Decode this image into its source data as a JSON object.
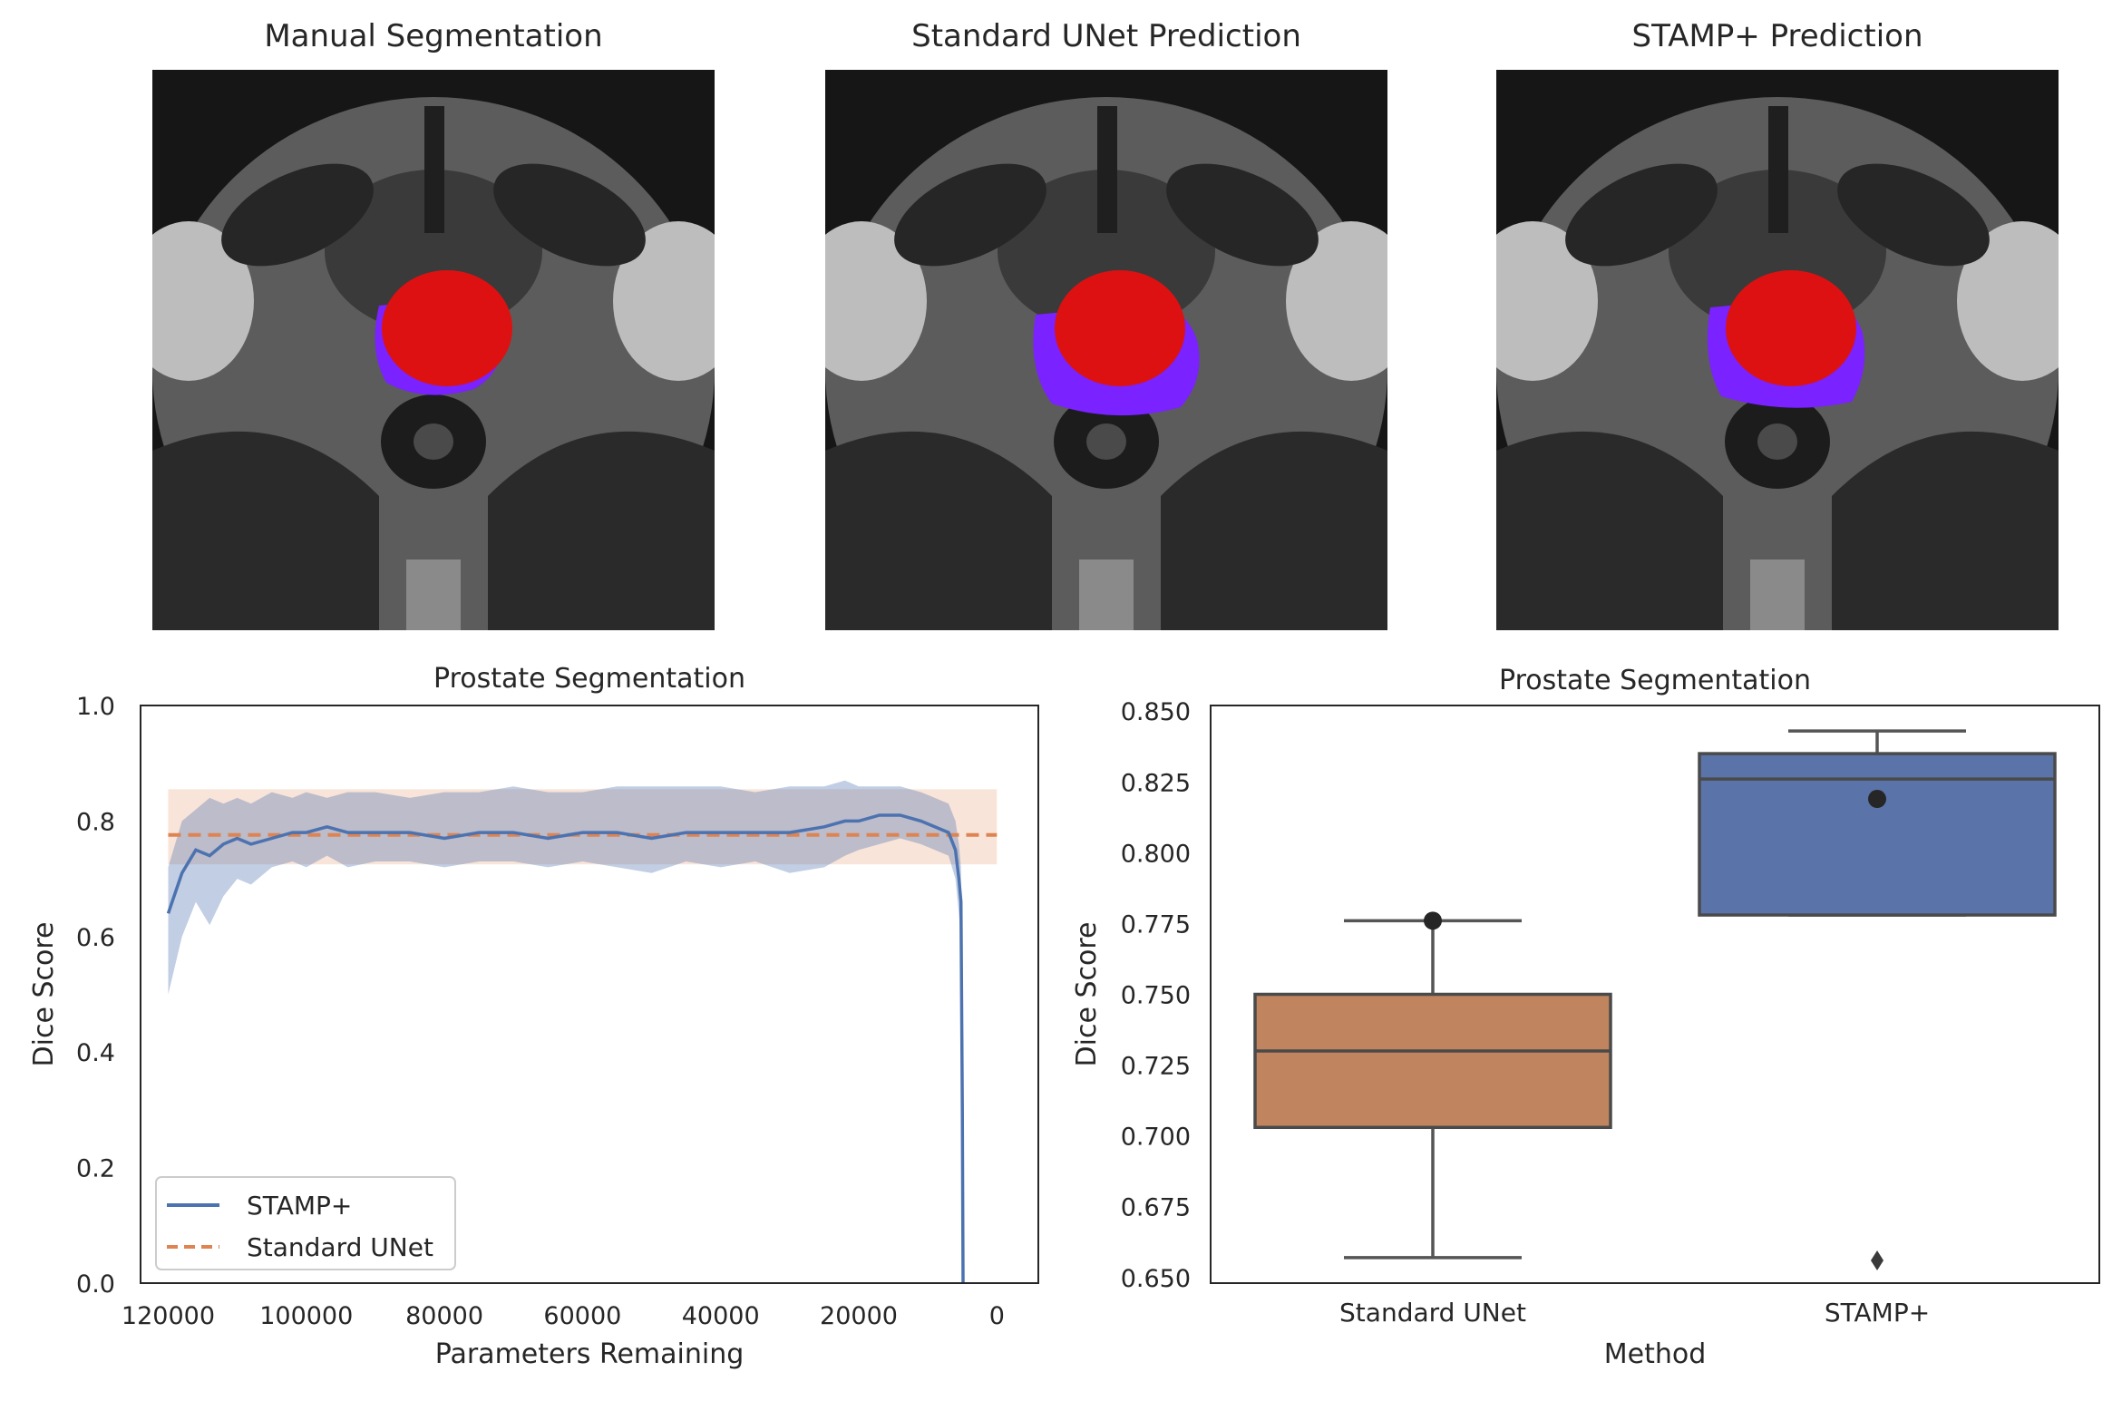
{
  "images": {
    "panels": [
      {
        "title": "Manual Segmentation"
      },
      {
        "title": "Standard UNet Prediction"
      },
      {
        "title": "STAMP+ Prediction"
      }
    ],
    "colors": {
      "prostate": "#dd1111",
      "extra": "#7a22ff"
    }
  },
  "chart_data": [
    {
      "type": "line",
      "title": "Prostate Segmentation",
      "xlabel": "Parameters Remaining",
      "ylabel": "Dice Score",
      "xlim": [
        124000,
        -6000
      ],
      "ylim": [
        0.0,
        1.0
      ],
      "x_reversed": true,
      "xticks": [
        120000,
        100000,
        80000,
        60000,
        40000,
        20000,
        0
      ],
      "xtick_labels": [
        "120000",
        "100000",
        "80000",
        "60000",
        "40000",
        "20000",
        "0"
      ],
      "yticks": [
        0.0,
        0.2,
        0.4,
        0.6,
        0.8,
        1.0
      ],
      "ytick_labels": [
        "0.0",
        "0.2",
        "0.4",
        "0.6",
        "0.8",
        "1.0"
      ],
      "grid": false,
      "legend": "lower-left",
      "series": [
        {
          "name": "STAMP+",
          "color": "#4c72b0",
          "style": "solid",
          "x": [
            120000,
            118000,
            116000,
            114000,
            112000,
            110000,
            108000,
            105000,
            102000,
            100000,
            97000,
            94000,
            90000,
            85000,
            80000,
            75000,
            70000,
            65000,
            60000,
            55000,
            50000,
            45000,
            40000,
            35000,
            30000,
            25000,
            22000,
            20000,
            17000,
            14000,
            11000,
            9000,
            7000,
            6000,
            5500,
            5200,
            5000,
            4900
          ],
          "y": [
            0.64,
            0.71,
            0.75,
            0.74,
            0.76,
            0.77,
            0.76,
            0.77,
            0.78,
            0.78,
            0.79,
            0.78,
            0.78,
            0.78,
            0.77,
            0.78,
            0.78,
            0.77,
            0.78,
            0.78,
            0.77,
            0.78,
            0.78,
            0.78,
            0.78,
            0.79,
            0.8,
            0.8,
            0.81,
            0.81,
            0.8,
            0.79,
            0.78,
            0.75,
            0.7,
            0.66,
            0.3,
            0.0
          ],
          "band_upper": [
            0.72,
            0.8,
            0.82,
            0.84,
            0.83,
            0.84,
            0.83,
            0.85,
            0.84,
            0.85,
            0.84,
            0.85,
            0.85,
            0.84,
            0.85,
            0.85,
            0.86,
            0.85,
            0.85,
            0.86,
            0.86,
            0.86,
            0.86,
            0.85,
            0.86,
            0.86,
            0.87,
            0.86,
            0.86,
            0.86,
            0.85,
            0.84,
            0.83,
            0.8,
            0.76,
            0.72,
            0.4,
            0.0
          ],
          "band_lower": [
            0.5,
            0.6,
            0.66,
            0.62,
            0.67,
            0.7,
            0.69,
            0.72,
            0.73,
            0.72,
            0.74,
            0.72,
            0.73,
            0.73,
            0.72,
            0.73,
            0.73,
            0.72,
            0.73,
            0.72,
            0.71,
            0.73,
            0.72,
            0.73,
            0.71,
            0.72,
            0.74,
            0.75,
            0.76,
            0.77,
            0.76,
            0.75,
            0.74,
            0.7,
            0.64,
            0.6,
            0.2,
            0.0
          ]
        },
        {
          "name": "Standard UNet",
          "color": "#dd8452",
          "style": "dashed",
          "x": [
            120000,
            0
          ],
          "y": [
            0.776,
            0.776
          ],
          "band_upper": [
            0.855,
            0.855
          ],
          "band_lower": [
            0.725,
            0.725
          ]
        }
      ]
    },
    {
      "type": "box",
      "title": "Prostate Segmentation",
      "xlabel": "Method",
      "ylabel": "Dice Score",
      "ylim": [
        0.648,
        0.852
      ],
      "yticks": [
        0.65,
        0.675,
        0.7,
        0.725,
        0.75,
        0.775,
        0.8,
        0.825,
        0.85
      ],
      "ytick_labels": [
        "0.650",
        "0.675",
        "0.700",
        "0.725",
        "0.750",
        "0.775",
        "0.800",
        "0.825",
        "0.850"
      ],
      "grid": false,
      "categories": [
        "Standard UNet",
        "STAMP+"
      ],
      "boxes": [
        {
          "name": "Standard UNet",
          "color": "#c0845e",
          "whisker_low": 0.657,
          "q1": 0.703,
          "median": 0.73,
          "q3": 0.75,
          "whisker_high": 0.776,
          "mean": 0.776,
          "outliers": []
        },
        {
          "name": "STAMP+",
          "color": "#5a73a8",
          "whisker_low": 0.778,
          "q1": 0.778,
          "median": 0.826,
          "q3": 0.835,
          "whisker_high": 0.843,
          "mean": 0.819,
          "outliers": [
            0.656
          ]
        }
      ]
    }
  ]
}
